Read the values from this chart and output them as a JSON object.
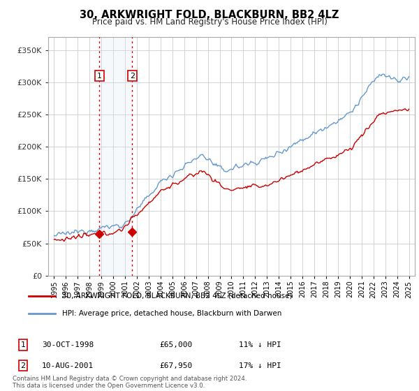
{
  "title": "30, ARKWRIGHT FOLD, BLACKBURN, BB2 4LZ",
  "subtitle": "Price paid vs. HM Land Registry's House Price Index (HPI)",
  "sale1_date": "30-OCT-1998",
  "sale1_price": 65000,
  "sale1_label": "1",
  "sale1_hpi_diff": "11% ↓ HPI",
  "sale2_date": "10-AUG-2001",
  "sale2_price": 67950,
  "sale2_label": "2",
  "sale2_hpi_diff": "17% ↓ HPI",
  "legend_property": "30, ARKWRIGHT FOLD, BLACKBURN, BB2 4LZ (detached house)",
  "legend_hpi": "HPI: Average price, detached house, Blackburn with Darwen",
  "footer": "Contains HM Land Registry data © Crown copyright and database right 2024.\nThis data is licensed under the Open Government Licence v3.0.",
  "property_color": "#cc0000",
  "hpi_color": "#6699cc",
  "sale_marker_color": "#cc0000",
  "sale_vline_color": "#cc0000",
  "sale_vfill_color": "#dce8f5",
  "ylabel_color": "#333333",
  "background_color": "#ffffff",
  "grid_color": "#cccccc",
  "ylim": [
    0,
    370000
  ],
  "yticks": [
    0,
    50000,
    100000,
    150000,
    200000,
    250000,
    300000,
    350000
  ],
  "sale1_x": 1998.83,
  "sale2_x": 2001.6
}
